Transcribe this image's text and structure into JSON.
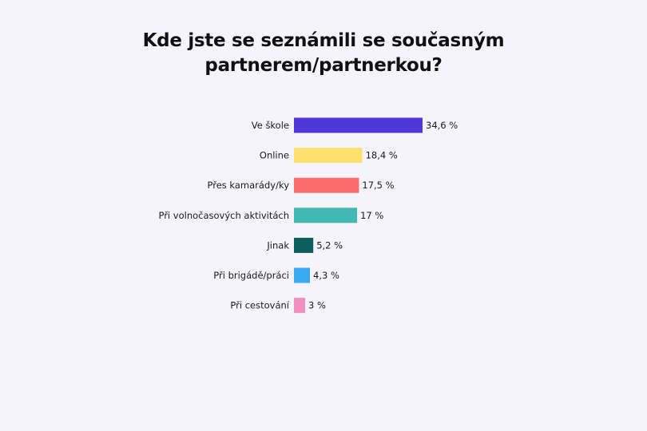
{
  "chart_data": {
    "type": "bar",
    "orientation": "horizontal",
    "title_lines": [
      "Kde jste se seznámili se současným",
      "partnerem/partnerkou?"
    ],
    "categories": [
      "Ve škole",
      "Online",
      "Přes kamarády/ky",
      "Při volnočasových aktivitách",
      "Jinak",
      "Při brigádě/práci",
      "Při cestování"
    ],
    "values": [
      34.6,
      18.4,
      17.5,
      17,
      5.2,
      4.3,
      3
    ],
    "value_labels": [
      "34,6 %",
      "18,4 %",
      "17,5 %",
      "17 %",
      "5,2 %",
      "4,3 %",
      "3 %"
    ],
    "colors": [
      "#4f36d8",
      "#fde06e",
      "#fb6b6b",
      "#43b7b3",
      "#0c5d5c",
      "#3aa8f2",
      "#f08ec0"
    ],
    "xlim": [
      0,
      35
    ],
    "grid": false,
    "legend": "none"
  }
}
